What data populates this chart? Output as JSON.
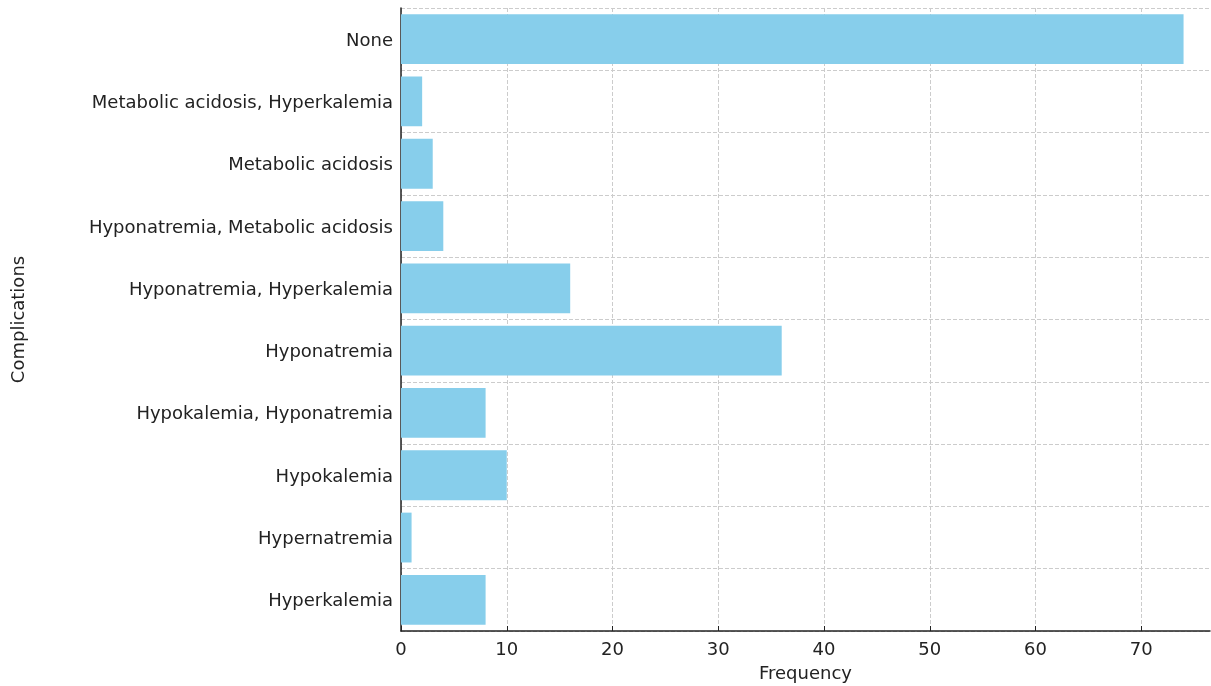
{
  "chart_data": {
    "type": "bar",
    "orientation": "horizontal",
    "xlabel": "Frequency",
    "ylabel": "Complications",
    "categories": [
      "None",
      "Metabolic acidosis, Hyperkalemia",
      "Metabolic acidosis",
      "Hyponatremia, Metabolic acidosis",
      "Hyponatremia, Hyperkalemia",
      "Hyponatremia",
      "Hypokalemia, Hyponatremia",
      "Hypokalemia",
      "Hypernatremia",
      "Hyperkalemia"
    ],
    "values": [
      74,
      2,
      3,
      4,
      16,
      36,
      8,
      10,
      1,
      8
    ],
    "color": "#87ceeb",
    "xlim": [
      0,
      76.5
    ],
    "xticks": [
      0,
      10,
      20,
      30,
      40,
      50,
      60,
      70
    ],
    "grid": true
  }
}
